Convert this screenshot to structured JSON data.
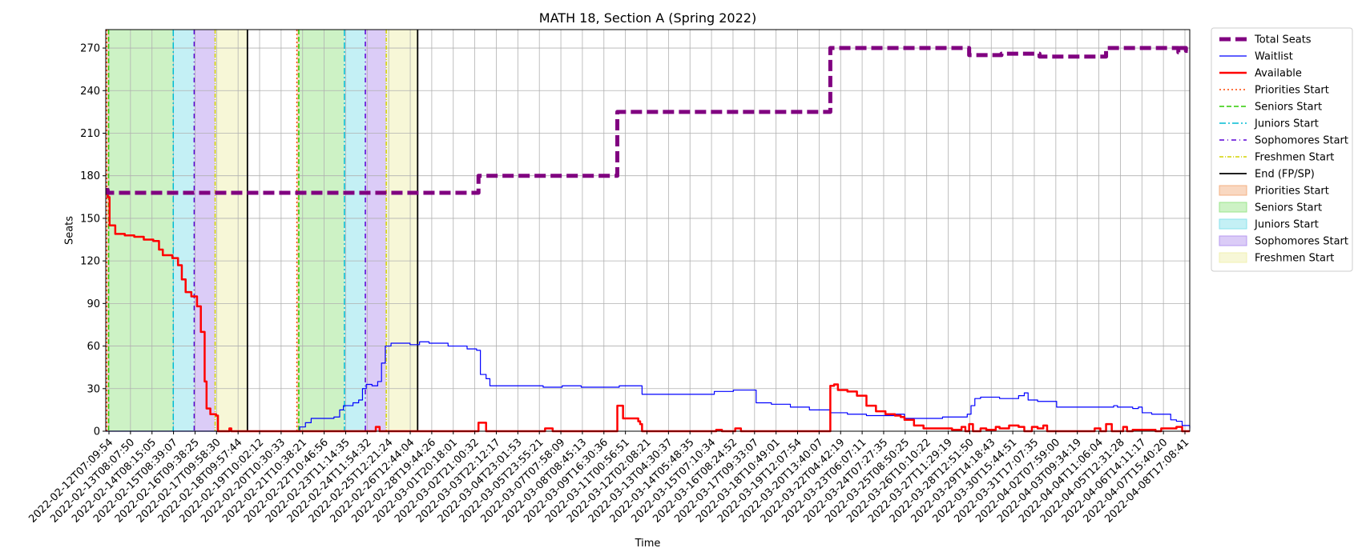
{
  "chart_data": {
    "type": "line",
    "title": "MATH 18, Section A (Spring 2022)",
    "xlabel": "Time",
    "ylabel": "Seats",
    "ylim": [
      0,
      283
    ],
    "yticks": [
      0,
      30,
      60,
      90,
      120,
      150,
      180,
      210,
      240,
      270
    ],
    "xlim_days": [
      0,
      57.0
    ],
    "grid": true,
    "legend_position": "outside-right",
    "x_tick_labels": [
      "2022-02-12T07:09:54",
      "2022-02-13T08:07:50",
      "2022-02-14T08:15:05",
      "2022-02-15T08:39:07",
      "2022-02-16T09:38:25",
      "2022-02-17T09:58:30",
      "2022-02-18T09:57:44",
      "2022-02-19T10:02:12",
      "2022-02-20T10:30:33",
      "2022-02-21T10:38:21",
      "2022-02-22T10:46:56",
      "2022-02-23T11:14:35",
      "2022-02-24T11:54:32",
      "2022-02-25T12:21:24",
      "2022-02-26T12:44:04",
      "2022-02-28T19:44:26",
      "2022-03-01T20:18:01",
      "2022-03-02T21:00:32",
      "2022-03-03T22:12:17",
      "2022-03-04T23:01:53",
      "2022-03-05T23:55:21",
      "2022-03-07T07:58:09",
      "2022-03-08T08:45:13",
      "2022-03-09T16:30:36",
      "2022-03-11T00:56:51",
      "2022-03-12T02:08:21",
      "2022-03-13T04:30:37",
      "2022-03-14T05:48:35",
      "2022-03-15T07:10:34",
      "2022-03-16T08:24:52",
      "2022-03-17T09:33:07",
      "2022-03-18T10:49:01",
      "2022-03-19T12:07:54",
      "2022-03-20T13:40:07",
      "2022-03-22T04:42:19",
      "2022-03-23T06:07:11",
      "2022-03-24T07:27:35",
      "2022-03-25T08:50:25",
      "2022-03-26T10:10:22",
      "2022-03-27T11:29:19",
      "2022-03-28T12:51:50",
      "2022-03-29T14:18:43",
      "2022-03-30T15:44:51",
      "2022-03-31T17:07:35",
      "2022-04-02T07:59:00",
      "2022-04-03T09:34:19",
      "2022-04-04T11:06:04",
      "2022-04-05T12:31:28",
      "2022-04-06T14:11:17",
      "2022-04-07T15:40:20",
      "2022-04-08T17:08:41"
    ],
    "series": [
      {
        "name": "Total Seats",
        "color": "#800080",
        "style": "dashed-thick",
        "points": [
          [
            0,
            170
          ],
          [
            0.1,
            168
          ],
          [
            19.5,
            168
          ],
          [
            19.6,
            180
          ],
          [
            26.8,
            180
          ],
          [
            26.9,
            225
          ],
          [
            38.0,
            225
          ],
          [
            38.1,
            270
          ],
          [
            45.3,
            270
          ],
          [
            45.4,
            265
          ],
          [
            47.0,
            265
          ],
          [
            47.1,
            266
          ],
          [
            49.0,
            266
          ],
          [
            49.1,
            264
          ],
          [
            52.5,
            264
          ],
          [
            52.6,
            270
          ],
          [
            56.3,
            270
          ],
          [
            56.4,
            267
          ],
          [
            56.5,
            270
          ],
          [
            56.7,
            270
          ],
          [
            56.8,
            268
          ],
          [
            57.0,
            268
          ]
        ]
      },
      {
        "name": "Waitlist",
        "color": "#0000ff",
        "style": "solid-thin",
        "points": [
          [
            0,
            0
          ],
          [
            10.0,
            0
          ],
          [
            10.2,
            3
          ],
          [
            10.5,
            6
          ],
          [
            10.8,
            9
          ],
          [
            11.5,
            9
          ],
          [
            12.0,
            10
          ],
          [
            12.3,
            15
          ],
          [
            12.5,
            18
          ],
          [
            13.0,
            20
          ],
          [
            13.3,
            22
          ],
          [
            13.5,
            30
          ],
          [
            13.7,
            33
          ],
          [
            14.0,
            32
          ],
          [
            14.3,
            35
          ],
          [
            14.5,
            48
          ],
          [
            14.7,
            60
          ],
          [
            15.0,
            62
          ],
          [
            16.0,
            61
          ],
          [
            16.5,
            63
          ],
          [
            17.0,
            62
          ],
          [
            18.0,
            60
          ],
          [
            19.0,
            58
          ],
          [
            19.5,
            57
          ],
          [
            19.7,
            40
          ],
          [
            20.0,
            37
          ],
          [
            20.2,
            32
          ],
          [
            21.0,
            32
          ],
          [
            22.0,
            32
          ],
          [
            23.0,
            31
          ],
          [
            24.0,
            32
          ],
          [
            25.0,
            31
          ],
          [
            26.0,
            31
          ],
          [
            27.0,
            32
          ],
          [
            28.0,
            32
          ],
          [
            28.2,
            26
          ],
          [
            29.0,
            26
          ],
          [
            30.0,
            26
          ],
          [
            31.0,
            26
          ],
          [
            32.0,
            28
          ],
          [
            33.0,
            29
          ],
          [
            34.0,
            29
          ],
          [
            34.2,
            20
          ],
          [
            35.0,
            19
          ],
          [
            36.0,
            17
          ],
          [
            37.0,
            15
          ],
          [
            38.0,
            15
          ],
          [
            38.1,
            13
          ],
          [
            39.0,
            12
          ],
          [
            40.0,
            11
          ],
          [
            41.0,
            11
          ],
          [
            41.5,
            12
          ],
          [
            42.0,
            9
          ],
          [
            43.0,
            9
          ],
          [
            44.0,
            10
          ],
          [
            45.0,
            10
          ],
          [
            45.3,
            12
          ],
          [
            45.5,
            18
          ],
          [
            45.7,
            23
          ],
          [
            46.0,
            24
          ],
          [
            47.0,
            23
          ],
          [
            48.0,
            25
          ],
          [
            48.3,
            27
          ],
          [
            48.5,
            22
          ],
          [
            49.0,
            21
          ],
          [
            50.0,
            17
          ],
          [
            51.0,
            17
          ],
          [
            52.0,
            17
          ],
          [
            53.0,
            18
          ],
          [
            53.2,
            17
          ],
          [
            54.0,
            16
          ],
          [
            54.3,
            17
          ],
          [
            54.5,
            13
          ],
          [
            55.0,
            12
          ],
          [
            55.5,
            12
          ],
          [
            56.0,
            8
          ],
          [
            56.3,
            7
          ],
          [
            56.6,
            4
          ],
          [
            57.0,
            2
          ]
        ]
      },
      {
        "name": "Available",
        "color": "#ff0000",
        "style": "solid-thick",
        "points": [
          [
            0,
            170
          ],
          [
            0.1,
            165
          ],
          [
            0.2,
            145
          ],
          [
            0.5,
            139
          ],
          [
            1.0,
            138
          ],
          [
            1.5,
            137
          ],
          [
            2.0,
            135
          ],
          [
            2.5,
            134
          ],
          [
            2.8,
            128
          ],
          [
            3.0,
            124
          ],
          [
            3.5,
            122
          ],
          [
            3.8,
            117
          ],
          [
            4.0,
            107
          ],
          [
            4.2,
            98
          ],
          [
            4.5,
            95
          ],
          [
            4.8,
            88
          ],
          [
            5.0,
            70
          ],
          [
            5.2,
            35
          ],
          [
            5.3,
            16
          ],
          [
            5.5,
            12
          ],
          [
            5.8,
            11
          ],
          [
            5.9,
            0
          ],
          [
            6.5,
            2
          ],
          [
            6.6,
            0
          ],
          [
            14.0,
            0
          ],
          [
            14.2,
            3
          ],
          [
            14.4,
            0
          ],
          [
            19.5,
            0
          ],
          [
            19.6,
            6
          ],
          [
            19.9,
            6
          ],
          [
            20.0,
            0
          ],
          [
            23.0,
            0
          ],
          [
            23.1,
            2
          ],
          [
            23.4,
            2
          ],
          [
            23.5,
            0
          ],
          [
            26.8,
            0
          ],
          [
            26.9,
            18
          ],
          [
            27.1,
            18
          ],
          [
            27.2,
            9
          ],
          [
            28.0,
            7
          ],
          [
            28.1,
            5
          ],
          [
            28.2,
            0
          ],
          [
            32.0,
            0
          ],
          [
            32.1,
            1
          ],
          [
            32.3,
            1
          ],
          [
            32.4,
            0
          ],
          [
            33.0,
            0
          ],
          [
            33.1,
            2
          ],
          [
            33.3,
            2
          ],
          [
            33.4,
            0
          ],
          [
            38.0,
            0
          ],
          [
            38.1,
            32
          ],
          [
            38.3,
            33
          ],
          [
            38.5,
            29
          ],
          [
            39.0,
            28
          ],
          [
            39.5,
            25
          ],
          [
            40.0,
            18
          ],
          [
            40.5,
            14
          ],
          [
            41.0,
            12
          ],
          [
            41.5,
            11
          ],
          [
            41.8,
            10
          ],
          [
            42.0,
            8
          ],
          [
            42.5,
            4
          ],
          [
            43.0,
            2
          ],
          [
            44.0,
            2
          ],
          [
            44.5,
            1
          ],
          [
            45.0,
            3
          ],
          [
            45.2,
            0
          ],
          [
            45.4,
            5
          ],
          [
            45.6,
            0
          ],
          [
            46.0,
            2
          ],
          [
            46.3,
            1
          ],
          [
            46.8,
            3
          ],
          [
            47.0,
            2
          ],
          [
            47.5,
            4
          ],
          [
            48.0,
            3
          ],
          [
            48.3,
            0
          ],
          [
            48.7,
            3
          ],
          [
            49.0,
            2
          ],
          [
            49.3,
            4
          ],
          [
            49.5,
            0
          ],
          [
            51.5,
            0
          ],
          [
            52.0,
            2
          ],
          [
            52.3,
            0
          ],
          [
            52.6,
            5
          ],
          [
            52.8,
            5
          ],
          [
            52.9,
            0
          ],
          [
            53.5,
            3
          ],
          [
            53.7,
            0
          ],
          [
            54.0,
            1
          ],
          [
            55.0,
            1
          ],
          [
            55.2,
            0
          ],
          [
            55.5,
            2
          ],
          [
            56.0,
            2
          ],
          [
            56.3,
            3
          ],
          [
            56.6,
            0
          ],
          [
            57.0,
            0
          ]
        ]
      }
    ],
    "vertical_markers": [
      {
        "name": "Priorities Start",
        "color": "#ff4500",
        "style": "dotted",
        "x": [
          0.05,
          10.05
        ]
      },
      {
        "name": "Seniors Start",
        "color": "#2ecc00",
        "style": "dashed",
        "x": [
          0.15,
          10.15
        ]
      },
      {
        "name": "Juniors Start",
        "color": "#00bcd4",
        "style": "dashdot",
        "x": [
          3.55,
          12.55
        ]
      },
      {
        "name": "Sophomores Start",
        "color": "#5a00d6",
        "style": "dashdot-dense",
        "x": [
          4.65,
          13.65
        ]
      },
      {
        "name": "Freshmen Start",
        "color": "#d4d400",
        "style": "dashdot-fine",
        "x": [
          5.75,
          14.75
        ]
      },
      {
        "name": "End (FP/SP)",
        "color": "#000000",
        "style": "solid",
        "x": [
          7.45,
          16.4
        ]
      }
    ],
    "shaded_regions": [
      {
        "name": "Priorities Start",
        "color": "#f4b183",
        "ranges": [
          [
            0.05,
            0.15
          ],
          [
            10.05,
            10.15
          ]
        ]
      },
      {
        "name": "Seniors Start",
        "color": "#9be68c",
        "ranges": [
          [
            0.15,
            3.55
          ],
          [
            10.15,
            12.55
          ]
        ]
      },
      {
        "name": "Juniors Start",
        "color": "#8ae2ec",
        "ranges": [
          [
            3.55,
            4.65
          ],
          [
            12.55,
            13.65
          ]
        ]
      },
      {
        "name": "Sophomores Start",
        "color": "#b79af0",
        "ranges": [
          [
            4.65,
            5.75
          ],
          [
            13.65,
            14.75
          ]
        ]
      },
      {
        "name": "Freshmen Start",
        "color": "#f0f0b0",
        "ranges": [
          [
            5.75,
            7.45
          ],
          [
            14.75,
            16.4
          ]
        ]
      }
    ]
  }
}
